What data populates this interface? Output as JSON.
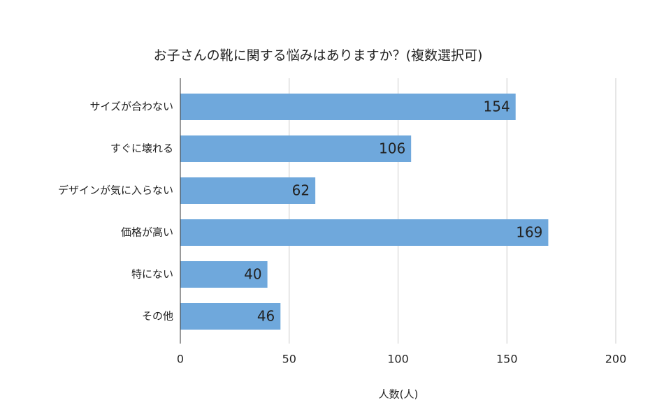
{
  "chart_data": {
    "type": "bar",
    "orientation": "horizontal",
    "title": "お子さんの靴に関する悩みはありますか？(複数選択可)",
    "x_label": "人数(人)",
    "categories": [
      "サイズが合わない",
      "すぐに壊れる",
      "デザインが気に入らない",
      "価格が高い",
      "特にない",
      "その他"
    ],
    "values": [
      154,
      106,
      62,
      169,
      40,
      46
    ],
    "color": "#6fa8dc",
    "xlim": [
      0,
      200
    ],
    "xticks": [
      0,
      50,
      100,
      150,
      200
    ],
    "grid": true
  }
}
